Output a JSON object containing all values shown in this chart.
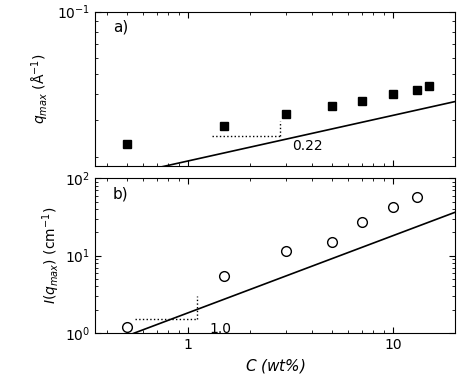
{
  "panel_a": {
    "label": "a)",
    "x_data": [
      0.5,
      1.5,
      3.0,
      5.0,
      7.0,
      10.0,
      13.0,
      15.0
    ],
    "y_data": [
      0.023,
      0.028,
      0.032,
      0.035,
      0.037,
      0.04,
      0.042,
      0.044
    ],
    "fit_slope": 0.22,
    "fit_intercept_log": -1.72,
    "slope_label": "0.22",
    "marker": "s",
    "marker_color": "black",
    "marker_size": 6,
    "ylabel": "$q_{max}$ (Å$^{-1}$)",
    "ylim": [
      0.018,
      0.1
    ]
  },
  "panel_b": {
    "label": "b)",
    "x_data": [
      0.5,
      1.5,
      3.0,
      5.0,
      7.0,
      10.0,
      13.0
    ],
    "y_data": [
      1.2,
      5.5,
      11.5,
      15.0,
      27.0,
      42.0,
      58.0
    ],
    "fit_slope": 1.0,
    "fit_intercept_log": 0.26,
    "slope_label": "1.0",
    "marker": "o",
    "marker_color": "white",
    "marker_edgecolor": "black",
    "marker_size": 7,
    "ylabel": "$I(q_{max})$ (cm$^{-1}$)",
    "ylim": [
      1.0,
      100.0
    ]
  },
  "xlim": [
    0.35,
    20.0
  ],
  "xlabel": "$C$ (wt%)",
  "background_color": "#ffffff",
  "line_color": "black"
}
